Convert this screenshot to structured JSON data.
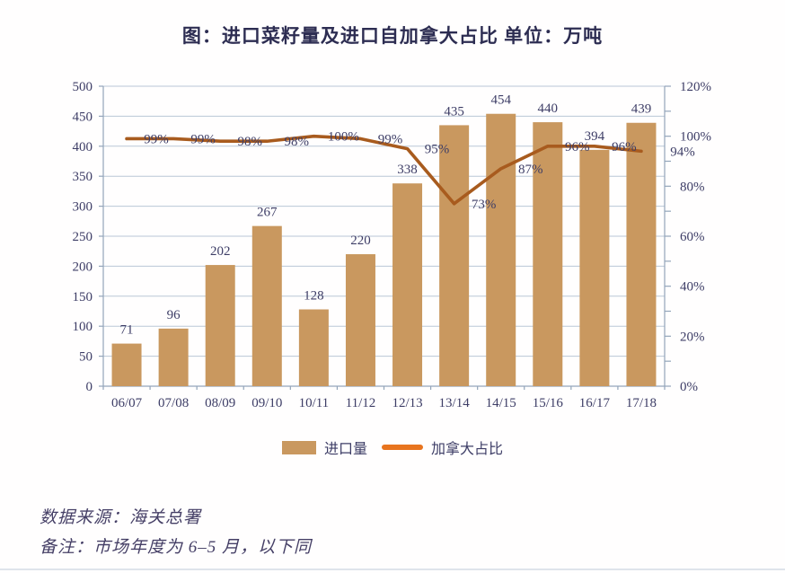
{
  "chart_data": {
    "type": "bar+line",
    "title": "图：进口菜籽量及进口自加拿大占比 单位：万吨",
    "categories": [
      "06/07",
      "07/08",
      "08/09",
      "09/10",
      "10/11",
      "11/12",
      "12/13",
      "13/14",
      "14/15",
      "15/16",
      "16/17",
      "17/18"
    ],
    "series": [
      {
        "name": "进口量",
        "type": "bar",
        "axis": "left",
        "color": "#c9985f",
        "values": [
          71,
          96,
          202,
          267,
          128,
          220,
          338,
          435,
          454,
          440,
          394,
          439
        ]
      },
      {
        "name": "加拿大占比",
        "type": "line",
        "axis": "right",
        "unit": "%",
        "color": "#a85b1e",
        "legend_color": "#e8741e",
        "values": [
          99,
          99,
          98,
          98,
          100,
          99,
          95,
          73,
          87,
          96,
          96,
          94
        ]
      }
    ],
    "left_axis": {
      "min": 0,
      "max": 500,
      "step": 50,
      "tick_labels": [
        "0",
        "50",
        "100",
        "150",
        "200",
        "250",
        "300",
        "350",
        "400",
        "450",
        "500"
      ]
    },
    "right_axis": {
      "min": 0,
      "max": 120,
      "step": 20,
      "minor_step": 10,
      "tick_labels": [
        "0%",
        "20%",
        "40%",
        "60%",
        "80%",
        "100%",
        "120%"
      ]
    },
    "grid": true,
    "legend_position": "bottom"
  },
  "footer": {
    "source": "数据来源：海关总署",
    "note": "备注：市场年度为 6–5 月，以下同"
  },
  "colors": {
    "text": "#3d3d66",
    "grid": "#bac7d6",
    "axis": "#93a5ba",
    "title": "#2d2d52"
  }
}
